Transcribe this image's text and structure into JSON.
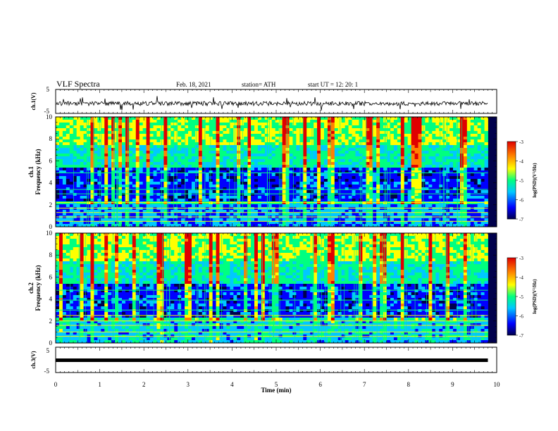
{
  "header": {
    "title": "VLF Spectra",
    "date": "Feb. 18, 2021",
    "station": "station= ATH",
    "start_ut": "start  UT =   12: 20: 1"
  },
  "chart_data": [
    {
      "type": "line",
      "name": "ch1-waveform",
      "ylabel": "ch.1(V)",
      "ylim": [
        -5,
        5
      ],
      "yticks": [
        "5",
        "-5"
      ],
      "xlim": [
        0,
        10
      ],
      "color": "#000000",
      "baseline": -0.5
    },
    {
      "type": "heatmap",
      "name": "ch1-spectrogram",
      "ylabel": "ch.1\nFrequency  (kHz)",
      "ylim": [
        0,
        10
      ],
      "yticks": [
        "0",
        "2",
        "4",
        "6",
        "8",
        "10"
      ],
      "xlim": [
        0,
        10
      ],
      "colorbar": {
        "label": "log(PSD)(V²/Hz)",
        "range": [
          -7,
          -3
        ],
        "ticks": [
          "-3",
          "-4",
          "-5",
          "-6",
          "-7"
        ]
      }
    },
    {
      "type": "heatmap",
      "name": "ch2-spectrogram",
      "ylabel": "ch.2\nFrequency  (kHz)",
      "ylim": [
        0,
        10
      ],
      "yticks": [
        "0",
        "2",
        "4",
        "6",
        "8",
        "10"
      ],
      "xlim": [
        0,
        10
      ],
      "colorbar": {
        "label": "log(PSD)(V²/Hz)",
        "range": [
          -7,
          -3
        ],
        "ticks": [
          "-3",
          "-4",
          "-5",
          "-6",
          "-7"
        ]
      }
    },
    {
      "type": "line",
      "name": "ch3-waveform",
      "ylabel": "ch.3(V)",
      "ylim": [
        -5,
        5
      ],
      "yticks": [
        "5",
        "-5"
      ],
      "xlim": [
        0,
        10
      ],
      "color": "#000000",
      "baseline": 0
    }
  ],
  "xaxis": {
    "label": "Time  (min)",
    "ticks": [
      "0",
      "1",
      "2",
      "3",
      "4",
      "5",
      "6",
      "7",
      "8",
      "9",
      "10"
    ],
    "data_end": 9.8
  },
  "colormap": [
    "#00004c",
    "#0000ff",
    "#00c8ff",
    "#00ff80",
    "#ffff00",
    "#ff8000",
    "#e00000"
  ]
}
